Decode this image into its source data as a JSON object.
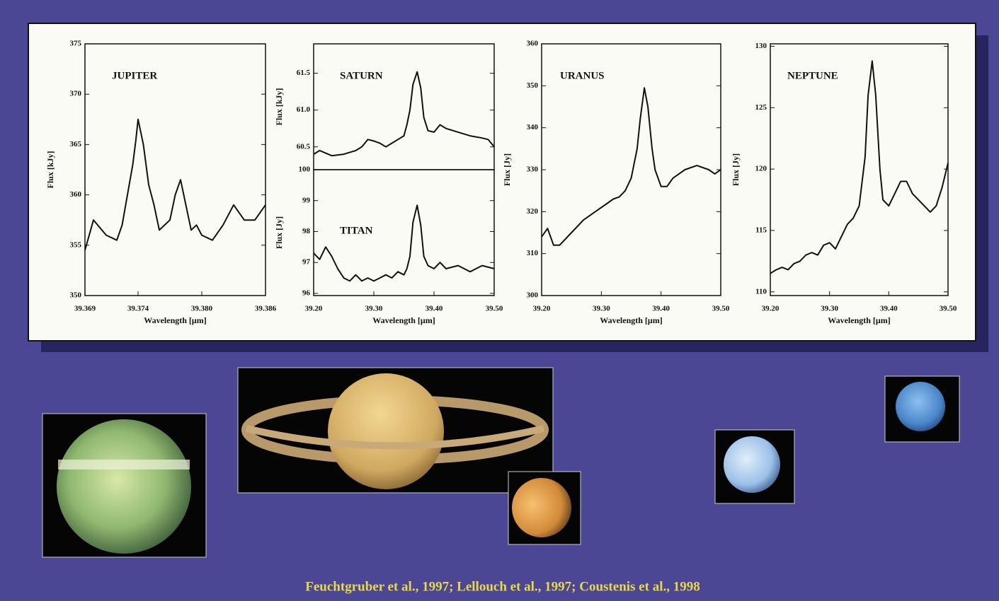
{
  "chart_data": [
    {
      "type": "line",
      "label": "JUPITER",
      "x_label": "Wavelength [μm]",
      "y_label": "Flux [kJy]",
      "color": "#111111",
      "xlim": [
        39.369,
        39.386
      ],
      "xticks": [
        39.369,
        39.374,
        {
          "value": 39.38,
          "label": "39.380"
        },
        39.386
      ],
      "ylim": [
        350,
        375
      ],
      "yticks": [
        350,
        355,
        360,
        365,
        370,
        375
      ],
      "x": [
        39.369,
        39.3698,
        39.371,
        39.372,
        39.3725,
        39.373,
        39.3735,
        39.3738,
        39.374,
        39.3745,
        39.375,
        39.3755,
        39.376,
        39.377,
        39.3775,
        39.378,
        39.3785,
        39.379,
        39.3795,
        39.38,
        39.381,
        39.382,
        39.383,
        39.384,
        39.385,
        39.386
      ],
      "values": [
        354.5,
        357.5,
        356,
        355.5,
        357,
        360,
        363,
        365.5,
        367.5,
        365,
        361,
        359,
        356.5,
        357.5,
        360,
        361.5,
        359,
        356.5,
        357,
        356,
        355.5,
        357,
        359,
        357.5,
        357.5,
        359
      ]
    },
    {
      "type": "line",
      "label": "SATURN",
      "y_label": "Flux [kJy]",
      "color": "#111111",
      "xlim": [
        39.2,
        39.5
      ],
      "ylim": [
        60.19,
        61.9
      ],
      "yticks": [
        60.5,
        {
          "value": 61,
          "label": "61.0"
        },
        61.5
      ],
      "x": [
        39.2,
        39.21,
        39.23,
        39.25,
        39.27,
        39.28,
        39.29,
        39.3,
        39.31,
        39.32,
        39.33,
        39.34,
        39.35,
        39.355,
        39.36,
        39.365,
        39.372,
        39.378,
        39.383,
        39.39,
        39.4,
        39.41,
        39.42,
        39.44,
        39.46,
        39.48,
        39.49,
        39.5
      ],
      "values": [
        60.4,
        60.45,
        60.38,
        60.4,
        60.45,
        60.5,
        60.6,
        60.58,
        60.55,
        60.5,
        60.55,
        60.6,
        60.65,
        60.8,
        61.0,
        61.35,
        61.52,
        61.3,
        60.9,
        60.72,
        60.7,
        60.8,
        60.75,
        60.7,
        60.65,
        60.62,
        60.6,
        60.5
      ]
    },
    {
      "type": "line",
      "label": "TITAN",
      "x_label": "Wavelength [μm]",
      "y_label": "Flux [Jy]",
      "color": "#111111",
      "xlim": [
        39.2,
        39.5
      ],
      "xticks": [
        {
          "value": 39.2,
          "label": "39.20"
        },
        {
          "value": 39.3,
          "label": "39.30"
        },
        {
          "value": 39.4,
          "label": "39.40"
        },
        {
          "value": 39.5,
          "label": "39.50"
        }
      ],
      "ylim": [
        95.93,
        100
      ],
      "yticks": [
        96,
        97,
        98,
        99,
        100
      ],
      "x": [
        39.2,
        39.21,
        39.22,
        39.23,
        39.24,
        39.25,
        39.26,
        39.27,
        39.28,
        39.29,
        39.3,
        39.31,
        39.32,
        39.33,
        39.34,
        39.35,
        39.355,
        39.36,
        39.365,
        39.372,
        39.378,
        39.383,
        39.39,
        39.4,
        39.41,
        39.42,
        39.44,
        39.46,
        39.48,
        39.5
      ],
      "values": [
        97.3,
        97.1,
        97.5,
        97.2,
        96.8,
        96.5,
        96.4,
        96.6,
        96.4,
        96.5,
        96.4,
        96.5,
        96.6,
        96.5,
        96.7,
        96.6,
        96.8,
        97.2,
        98.3,
        98.85,
        98.2,
        97.2,
        96.9,
        96.8,
        97.0,
        96.8,
        96.9,
        96.7,
        96.9,
        96.8
      ]
    },
    {
      "type": "line",
      "label": "URANUS",
      "x_label": "Wavelength [μm]",
      "y_label": "Flux [Jy]",
      "color": "#111111",
      "xlim": [
        39.2,
        39.5
      ],
      "xticks": [
        {
          "value": 39.2,
          "label": "39.20"
        },
        {
          "value": 39.3,
          "label": "39.30"
        },
        {
          "value": 39.4,
          "label": "39.40"
        },
        {
          "value": 39.5,
          "label": "39.50"
        }
      ],
      "ylim": [
        300,
        360
      ],
      "yticks": [
        300,
        310,
        320,
        330,
        340,
        350,
        360
      ],
      "x": [
        39.2,
        39.21,
        39.22,
        39.23,
        39.25,
        39.27,
        39.29,
        39.31,
        39.32,
        39.33,
        39.34,
        39.35,
        39.36,
        39.365,
        39.372,
        39.378,
        39.385,
        39.39,
        39.4,
        39.41,
        39.42,
        39.44,
        39.46,
        39.48,
        39.49,
        39.5
      ],
      "values": [
        314,
        316,
        312,
        312,
        315,
        318,
        320,
        322,
        323,
        323.5,
        325,
        328,
        335,
        342,
        349.5,
        345,
        335,
        330,
        326,
        326,
        328,
        330,
        331,
        330,
        329,
        330
      ]
    },
    {
      "type": "line",
      "label": "NEPTUNE",
      "x_label": "Wavelength [μm]",
      "y_label": "Flux [Jy]",
      "color": "#111111",
      "xlim": [
        39.2,
        39.5
      ],
      "xticks": [
        {
          "value": 39.2,
          "label": "39.20"
        },
        {
          "value": 39.3,
          "label": "39.30"
        },
        {
          "value": 39.4,
          "label": "39.40"
        },
        {
          "value": 39.5,
          "label": "39.50"
        }
      ],
      "ylim": [
        109.7,
        130.2
      ],
      "yticks": [
        110,
        115,
        120,
        125,
        130
      ],
      "x": [
        39.2,
        39.21,
        39.22,
        39.23,
        39.24,
        39.25,
        39.26,
        39.27,
        39.28,
        39.29,
        39.3,
        39.31,
        39.32,
        39.33,
        39.34,
        39.35,
        39.36,
        39.365,
        39.372,
        39.378,
        39.385,
        39.39,
        39.4,
        39.41,
        39.42,
        39.43,
        39.44,
        39.46,
        39.47,
        39.48,
        39.49,
        39.5
      ],
      "values": [
        111.5,
        111.8,
        112,
        111.8,
        112.3,
        112.5,
        113,
        113.2,
        113,
        113.8,
        114,
        113.5,
        114.5,
        115.5,
        116,
        117,
        121,
        126,
        128.8,
        126,
        120,
        117.5,
        117,
        118,
        119,
        119,
        118,
        117,
        116.5,
        117,
        118.5,
        120.5
      ]
    }
  ],
  "citation": "Feuchtgruber et al., 1997;  Lellouch et al., 1997; Coustenis et al., 1998"
}
